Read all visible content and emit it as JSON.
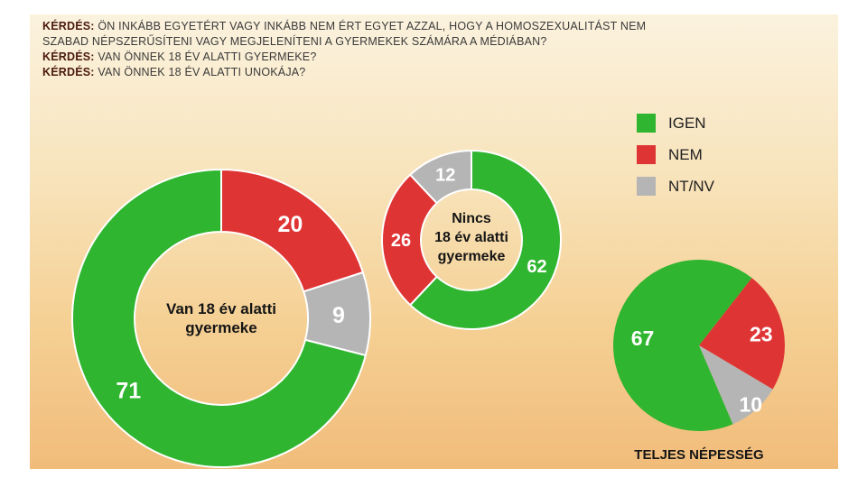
{
  "panel": {
    "background_top": "#FBF2DE",
    "background_bottom": "#F1BC7A"
  },
  "questions": {
    "lines": [
      {
        "prefix": "KÉRDÉS:",
        "text": "ÖN INKÁBB EGYETÉRT VAGY INKÁBB NEM ÉRT EGYET AZZAL, HOGY A HOMOSZEXUALITÁST NEM"
      },
      {
        "prefix": "",
        "text": "SZABAD NÉPSZERŰSÍTENI VAGY MEGJELENÍTENI A GYERMEKEK SZÁMÁRA A MÉDIÁBAN?"
      },
      {
        "prefix": "KÉRDÉS:",
        "text": "VAN ÖNNEK 18 ÉV ALATTI GYERMEKE?"
      },
      {
        "prefix": "KÉRDÉS:",
        "text": "VAN ÖNNEK 18 ÉV ALATTI UNOKÁJA?"
      }
    ]
  },
  "legend": {
    "items": [
      {
        "label": "IGEN",
        "color": "#2FB52F"
      },
      {
        "label": "NEM",
        "color": "#DF3434"
      },
      {
        "label": "NT/NV",
        "color": "#B5B5B5"
      }
    ]
  },
  "chart_data": [
    {
      "id": "children",
      "type": "donut",
      "title": "Van 18 év alatti gyermeke",
      "center_label_lines": [
        "Van 18 év alatti",
        "gyermeke"
      ],
      "unit": "%",
      "start_angle": 0,
      "segments": [
        {
          "label": "NEM",
          "value": 20,
          "color": "#DF3434"
        },
        {
          "label": "NT/NV",
          "value": 9,
          "color": "#B5B5B5"
        },
        {
          "label": "IGEN",
          "value": 71,
          "color": "#2FB52F"
        }
      ]
    },
    {
      "id": "no_children",
      "type": "donut",
      "title": "Nincs 18 év alatti gyermeke",
      "center_label_lines": [
        "Nincs",
        "18 év alatti",
        "gyermeke"
      ],
      "unit": "%",
      "start_angle": 0,
      "segments": [
        {
          "label": "IGEN",
          "value": 62,
          "color": "#2FB52F"
        },
        {
          "label": "NEM",
          "value": 26,
          "color": "#DF3434"
        },
        {
          "label": "NT/NV",
          "value": 12,
          "color": "#B5B5B5"
        }
      ]
    },
    {
      "id": "total",
      "type": "pie",
      "title": "TELJES NÉPESSÉG",
      "unit": "%",
      "start_angle": 38,
      "segments": [
        {
          "label": "NEM",
          "value": 23,
          "color": "#DF3434"
        },
        {
          "label": "NT/NV",
          "value": 10,
          "color": "#B5B5B5"
        },
        {
          "label": "IGEN",
          "value": 67,
          "color": "#2FB52F"
        }
      ]
    }
  ]
}
